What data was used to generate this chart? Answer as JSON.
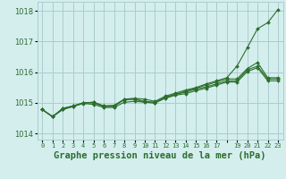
{
  "background_color": "#d4eeee",
  "grid_color": "#aacccc",
  "line_color": "#2d6e2d",
  "marker_color": "#2d6e2d",
  "title": "Graphe pression niveau de la mer (hPa)",
  "title_fontsize": 7.5,
  "xlim": [
    -0.5,
    23.5
  ],
  "ylim": [
    1013.8,
    1018.3
  ],
  "yticks": [
    1014,
    1015,
    1016,
    1017,
    1018
  ],
  "xtick_labels": [
    "0",
    "1",
    "2",
    "3",
    "4",
    "5",
    "6",
    "7",
    "8",
    "9",
    "10",
    "11",
    "12",
    "13",
    "14",
    "15",
    "16",
    "17",
    "",
    "19",
    "20",
    "21",
    "22",
    "23"
  ],
  "series": [
    [
      1014.78,
      1014.55,
      1014.78,
      1014.88,
      1015.0,
      1015.0,
      1014.88,
      1014.88,
      1015.12,
      1015.15,
      1015.12,
      1015.05,
      1015.22,
      1015.32,
      1015.42,
      1015.5,
      1015.62,
      1015.72,
      1015.82,
      1016.2,
      1016.8,
      1017.42,
      1017.62,
      1018.05
    ],
    [
      1014.78,
      1014.55,
      1014.82,
      1014.9,
      1015.0,
      1015.02,
      1014.9,
      1014.9,
      1015.1,
      1015.12,
      1015.05,
      1015.02,
      1015.18,
      1015.28,
      1015.38,
      1015.48,
      1015.58,
      1015.68,
      1015.78,
      1015.78,
      1016.12,
      1016.32,
      1015.82,
      1015.82
    ],
    [
      1014.78,
      1014.55,
      1014.82,
      1014.9,
      1015.0,
      1015.02,
      1014.9,
      1014.92,
      1015.12,
      1015.12,
      1015.02,
      1015.0,
      1015.18,
      1015.28,
      1015.35,
      1015.45,
      1015.52,
      1015.62,
      1015.72,
      1015.72,
      1016.08,
      1016.2,
      1015.78,
      1015.78
    ],
    [
      1014.78,
      1014.55,
      1014.8,
      1014.88,
      1014.98,
      1014.95,
      1014.85,
      1014.85,
      1015.02,
      1015.05,
      1015.02,
      1015.0,
      1015.15,
      1015.25,
      1015.3,
      1015.4,
      1015.48,
      1015.58,
      1015.68,
      1015.68,
      1016.02,
      1016.15,
      1015.72,
      1015.72
    ]
  ]
}
